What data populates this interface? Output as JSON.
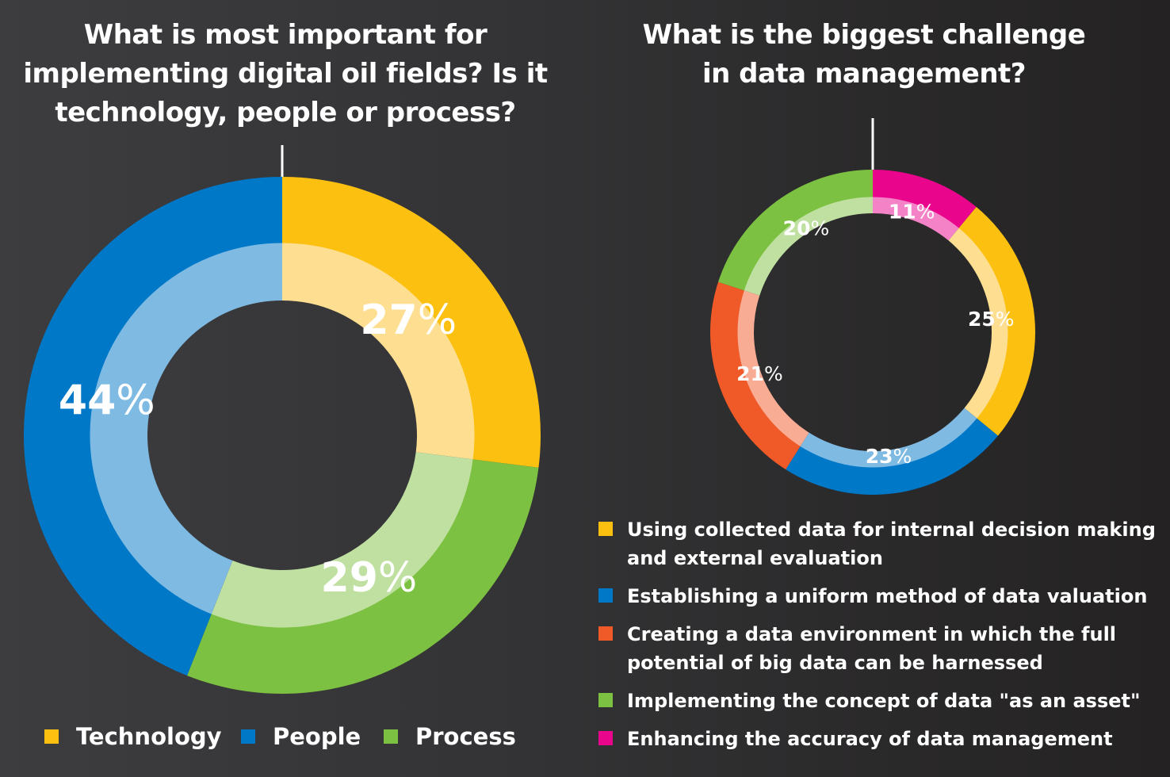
{
  "charts": [
    {
      "title_lines": [
        "What is most important for",
        "implementing digital oil fields? Is it",
        "technology, people or process?"
      ]
    },
    {
      "title_lines": [
        "What is the biggest challenge",
        "in data management?"
      ]
    }
  ],
  "chart_data": [
    {
      "type": "donut",
      "title": "What is most important for implementing digital oil fields? Is it technology, people or process?",
      "categories": [
        "Technology",
        "Process",
        "People"
      ],
      "values": [
        27,
        29,
        44
      ],
      "labels": [
        "27",
        "29",
        "44"
      ],
      "unit": "%",
      "colors": [
        "#fcc010",
        "#7dc142",
        "#0078c8"
      ],
      "inner_colors": [
        "#fedf91",
        "#bfe0a1",
        "#7fbae3"
      ],
      "start": "12 o'clock, clockwise",
      "legend": [
        "Technology",
        "People",
        "Process"
      ],
      "legend_colors": [
        "#fcc010",
        "#0078c8",
        "#7dc142"
      ]
    },
    {
      "type": "donut",
      "title": "What is the biggest challenge in data management?",
      "categories": [
        "Enhancing the accuracy of data management",
        "Using collected data for internal decision making and external evaluation",
        "Establishing a uniform method of data valuation",
        "Creating a data environment in which the full potential of big data can be harnessed",
        "Implementing the concept of data \"as an asset\""
      ],
      "values": [
        11,
        25,
        23,
        21,
        20
      ],
      "labels": [
        "11",
        "25",
        "23",
        "21",
        "20"
      ],
      "unit": "%",
      "colors": [
        "#e9058c",
        "#fcc010",
        "#0078c8",
        "#f05a28",
        "#7dc142"
      ],
      "inner_colors": [
        "#f482c6",
        "#fedf91",
        "#7fbae3",
        "#f7ac93",
        "#bfe0a1"
      ],
      "start": "12 o'clock, clockwise",
      "legend": [
        {
          "lines": [
            "Using collected data for internal decision making",
            "and external evaluation"
          ],
          "color": "#fcc010"
        },
        {
          "lines": [
            "Establishing a uniform method of data valuation"
          ],
          "color": "#0078c8"
        },
        {
          "lines": [
            "Creating a data environment in which the full",
            "potential of big data can be harnessed"
          ],
          "color": "#f05a28"
        },
        {
          "lines": [
            "Implementing the concept of data \"as an asset\""
          ],
          "color": "#7dc142"
        },
        {
          "lines": [
            "Enhancing the accuracy of data management"
          ],
          "color": "#e9058c"
        }
      ]
    }
  ]
}
